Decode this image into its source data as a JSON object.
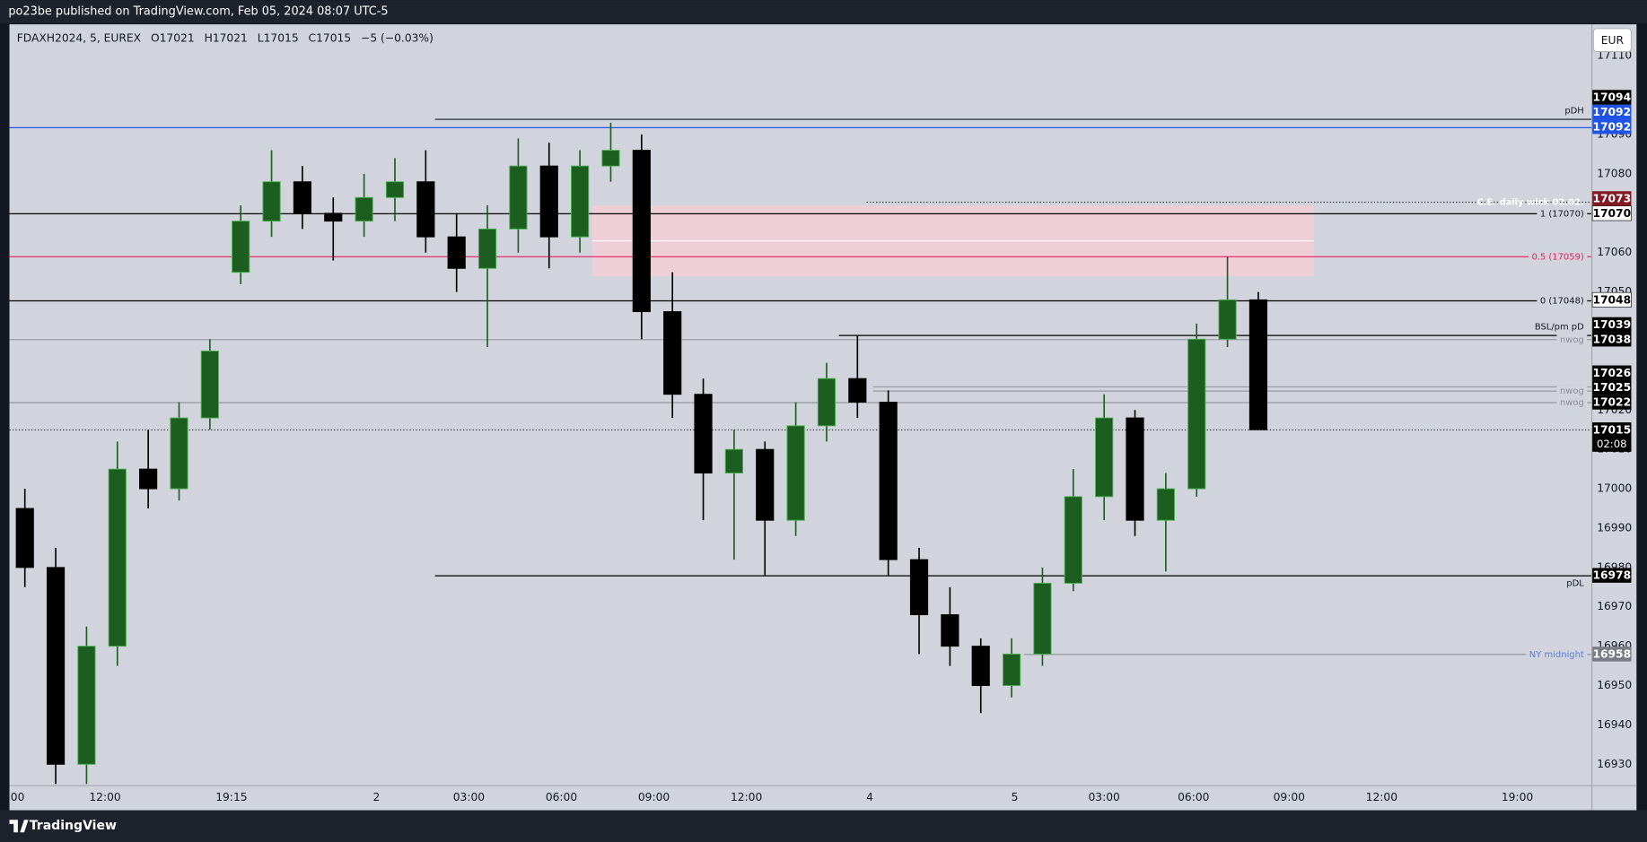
{
  "header": {
    "title": "po23be published on TradingView.com, Feb 05, 2024 08:07 UTC-5"
  },
  "footer": {
    "brand": "TradingView"
  },
  "chart_data": {
    "type": "candlestick",
    "legend": [
      "FDAXH2024, 5, EUREX",
      "O17021",
      "H17021",
      "L17015",
      "C17015",
      "−5 (−0.03%)"
    ],
    "currency": "EUR",
    "x": [
      0,
      1,
      2,
      3,
      4,
      5,
      6,
      7,
      8,
      9,
      10,
      11,
      12,
      13,
      14,
      15,
      16,
      17,
      18,
      19,
      20,
      21,
      22,
      23,
      24,
      25,
      26,
      27,
      28,
      29,
      30,
      31,
      32,
      33,
      34,
      35,
      36,
      37,
      38,
      39,
      40
    ],
    "open": [
      16995,
      16980,
      16930,
      16960,
      17005,
      17000,
      17018,
      17055,
      17068,
      17078,
      17070,
      17068,
      17074,
      17078,
      17064,
      17056,
      17066,
      17082,
      17064,
      17082,
      17086,
      17045,
      17024,
      17004,
      17010,
      16992,
      17016,
      17028,
      17022,
      16982,
      16968,
      16960,
      16950,
      16958,
      16976,
      16998,
      17018,
      16992,
      17000,
      17038,
      17048
    ],
    "high": [
      17000,
      16985,
      16965,
      17012,
      17015,
      17022,
      17038,
      17072,
      17086,
      17082,
      17074,
      17080,
      17084,
      17086,
      17070,
      17072,
      17089,
      17088,
      17086,
      17093,
      17090,
      17055,
      17028,
      17015,
      17012,
      17022,
      17032,
      17039,
      17025,
      16985,
      16975,
      16962,
      16962,
      16980,
      17005,
      17024,
      17020,
      17004,
      17042,
      17059,
      17050
    ],
    "low": [
      16975,
      16925,
      16925,
      16955,
      16995,
      16997,
      17015,
      17052,
      17064,
      17066,
      17058,
      17064,
      17068,
      17060,
      17050,
      17036,
      17060,
      17056,
      17060,
      17078,
      17038,
      17018,
      16992,
      16982,
      16978,
      16988,
      17012,
      17018,
      16978,
      16958,
      16955,
      16943,
      16947,
      16955,
      16974,
      16992,
      16988,
      16979,
      16998,
      17036,
      17015
    ],
    "close": [
      16980,
      16930,
      16960,
      17005,
      17000,
      17018,
      17035,
      17068,
      17078,
      17070,
      17068,
      17074,
      17078,
      17064,
      17056,
      17066,
      17082,
      17064,
      17082,
      17086,
      17045,
      17024,
      17004,
      17010,
      16992,
      17016,
      17028,
      17022,
      16982,
      16968,
      16960,
      16950,
      16958,
      16976,
      16998,
      17018,
      16992,
      17000,
      17038,
      17048,
      17015
    ],
    "up_color": "#1b5e20",
    "down_color": "#000000",
    "xlim": [
      -0.5,
      50.8
    ],
    "ylim": [
      16924.7,
      17118
    ],
    "xticks": [
      {
        "value": -0.5,
        "label": ":00"
      },
      {
        "value": 2.6,
        "label": "12:00"
      },
      {
        "value": 6.7,
        "label": "19:15"
      },
      {
        "value": 11.4,
        "label": "2"
      },
      {
        "value": 14.4,
        "label": "03:00"
      },
      {
        "value": 17.4,
        "label": "06:00"
      },
      {
        "value": 20.4,
        "label": "09:00"
      },
      {
        "value": 23.4,
        "label": "12:00"
      },
      {
        "value": 27.4,
        "label": "4"
      },
      {
        "value": 32.1,
        "label": "5"
      },
      {
        "value": 35,
        "label": "03:00"
      },
      {
        "value": 37.9,
        "label": "06:00"
      },
      {
        "value": 41,
        "label": "09:00"
      },
      {
        "value": 44,
        "label": "12:00"
      },
      {
        "value": 48.4,
        "label": "19:00"
      }
    ],
    "yticks": [
      16930,
      16940,
      16950,
      16960,
      16970,
      16980,
      16990,
      17000,
      17010,
      17020,
      17030,
      17040,
      17050,
      17060,
      17070,
      17080,
      17090,
      17100,
      17110
    ],
    "zone": {
      "from": 17054,
      "to": 17072,
      "mid": 17063,
      "x_start": 18.4,
      "x_end": 41.8,
      "color": "#f3cdd6",
      "mid_color": "#ffffff"
    },
    "levels": [
      {
        "price": 17094,
        "color": "#131722",
        "style": "solid",
        "x_start": 13.3,
        "label": "pDH",
        "label_color": "#131722",
        "label_place": "above",
        "tag_bg": "#000000",
        "tag_fg": "#ffffff"
      },
      {
        "price": 17092,
        "color": "#1e53e5",
        "style": "solid",
        "x_start": -0.5,
        "tag_bg": "#1e53e5",
        "tag_fg": "#ffffff"
      },
      {
        "price": 17092,
        "color": "#1e53e5",
        "style": "solid",
        "x_start": -0.5,
        "tag_bg": "#1e53e5",
        "tag_fg": "#ffffff"
      },
      {
        "price": 17073,
        "color": "#131722",
        "style": "dotted",
        "x_start": 27.3,
        "label": "C.E. daily wick 02.02.",
        "label_color": "#ffffff",
        "label_place": "on",
        "tag_bg": "#801922",
        "tag_fg": "#ffffff"
      },
      {
        "price": 17070,
        "color": "#000000",
        "style": "solid",
        "x_start": -0.5,
        "label": "1 (17070)",
        "label_color": "#131722",
        "label_place": "on",
        "tag_bg": "#ffffff",
        "tag_fg": "#000000"
      },
      {
        "price": 17059,
        "color": "#e91e63",
        "style": "solid",
        "x_start": -0.5,
        "label": "0.5 (17059)",
        "label_color": "#e91e63",
        "label_place": "on"
      },
      {
        "price": 17048,
        "color": "#000000",
        "style": "solid",
        "x_start": -0.5,
        "label": "0 (17048)",
        "label_color": "#131722",
        "label_place": "on",
        "tag_bg": "#ffffff",
        "tag_fg": "#000000"
      },
      {
        "price": 17039,
        "color": "#000000",
        "style": "solid",
        "x_start": 26.4,
        "label": "BSL/pm pD",
        "label_color": "#131722",
        "label_place": "above",
        "tag_bg": "#000000",
        "tag_fg": "#ffffff"
      },
      {
        "price": 17038,
        "color": "#9598a1",
        "style": "solid",
        "x_start": -0.5,
        "label": "nwog",
        "label_color": "#8a8d96",
        "label_place": "on",
        "tag_bg": "#000000",
        "tag_fg": "#ffffff"
      },
      {
        "price": 17026,
        "color": "#9598a1",
        "style": "solid",
        "x_start": 27.5,
        "label": "nwog",
        "label_color": "#8a8d96",
        "label_place": "on",
        "tag_bg": "#000000",
        "tag_fg": "#ffffff"
      },
      {
        "price": 17025,
        "color": "#9598a1",
        "style": "solid",
        "x_start": 27.5,
        "label": "nwog",
        "label_color": "#8a8d96",
        "label_place": "on",
        "tag_bg": "#000000",
        "tag_fg": "#ffffff"
      },
      {
        "price": 17022,
        "color": "#9598a1",
        "style": "solid",
        "x_start": -0.5,
        "label": "nwog",
        "label_color": "#8a8d96",
        "label_place": "on",
        "tag_bg": "#000000",
        "tag_fg": "#ffffff"
      },
      {
        "price": 17015,
        "color": "#131722",
        "style": "dotted",
        "x_start": -0.5,
        "countdown": "02:08",
        "tag_bg": "#000000",
        "tag_fg": "#ffffff"
      },
      {
        "price": 16978,
        "color": "#000000",
        "style": "solid",
        "x_start": 13.3,
        "label": "pDL",
        "label_color": "#131722",
        "label_place": "below",
        "tag_bg": "#000000",
        "tag_fg": "#ffffff"
      },
      {
        "price": 16958,
        "color": "#9598a1",
        "style": "solid",
        "x_start": 32.4,
        "label": "NY midnight",
        "label_color": "#5b7fe0",
        "label_place": "on",
        "tag_bg": "#787b86",
        "tag_fg": "#ffffff"
      }
    ]
  }
}
